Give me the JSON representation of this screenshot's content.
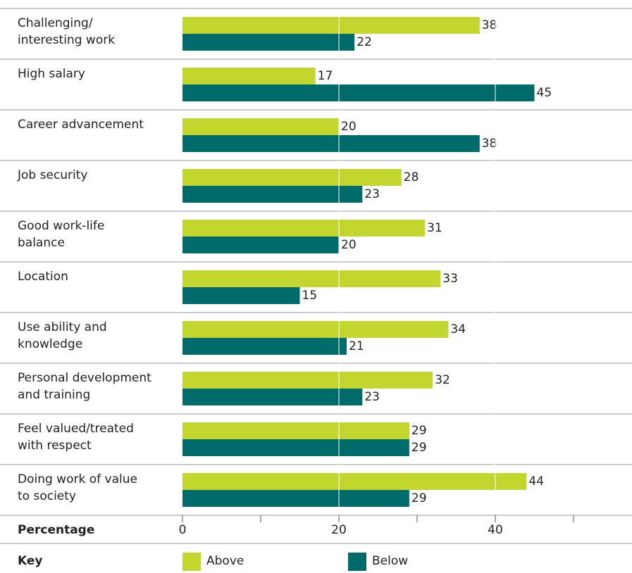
{
  "chart_data": {
    "type": "hbar",
    "categories": [
      [
        "Challenging/",
        "interesting work"
      ],
      [
        "High salary"
      ],
      [
        "Career advancement"
      ],
      [
        "Job security"
      ],
      [
        "Good work-life",
        "balance"
      ],
      [
        "Location"
      ],
      [
        "Use ability and",
        "knowledge"
      ],
      [
        "Personal development",
        "and training"
      ],
      [
        "Feel valued/treated",
        "with respect"
      ],
      [
        "Doing work of value",
        "to society"
      ]
    ],
    "series": [
      {
        "name": "Above",
        "color": "#c3d62e",
        "values": [
          38,
          17,
          20,
          28,
          31,
          33,
          34,
          32,
          29,
          44
        ]
      },
      {
        "name": "Below",
        "color": "#006b6b",
        "values": [
          22,
          45,
          38,
          23,
          20,
          15,
          21,
          23,
          29,
          29
        ]
      }
    ],
    "xlabel": "Percentage",
    "legend_title": "Key",
    "xlim": [
      0,
      57.5
    ],
    "xticks": [
      0,
      20,
      40
    ],
    "xminor_ticks": [
      10,
      30,
      50
    ],
    "grid": true
  }
}
